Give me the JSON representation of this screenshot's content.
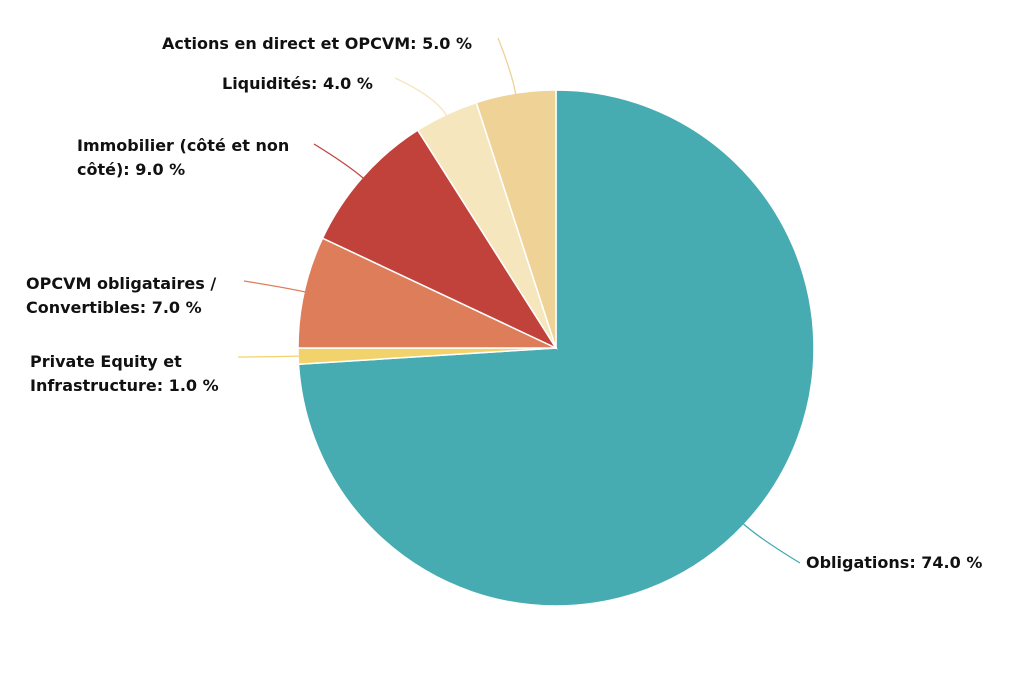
{
  "chart_data": {
    "type": "pie",
    "categories": [
      "Obligations: 74.0 %",
      "Private Equity et Infrastructure: 1.0 %",
      "OPCVM obligataires / Convertibles: 7.0 %",
      "Immobilier (côté et non côté): 9.0 %",
      "Liquidités: 4.0 %",
      "Actions en direct et OPCVM: 5.0 %"
    ],
    "values": [
      74,
      1,
      7,
      9,
      4,
      5
    ],
    "colors": [
      "#47abb2",
      "#f2d36b",
      "#de7d5a",
      "#c1423b",
      "#f6e6be",
      "#eed296"
    ]
  }
}
